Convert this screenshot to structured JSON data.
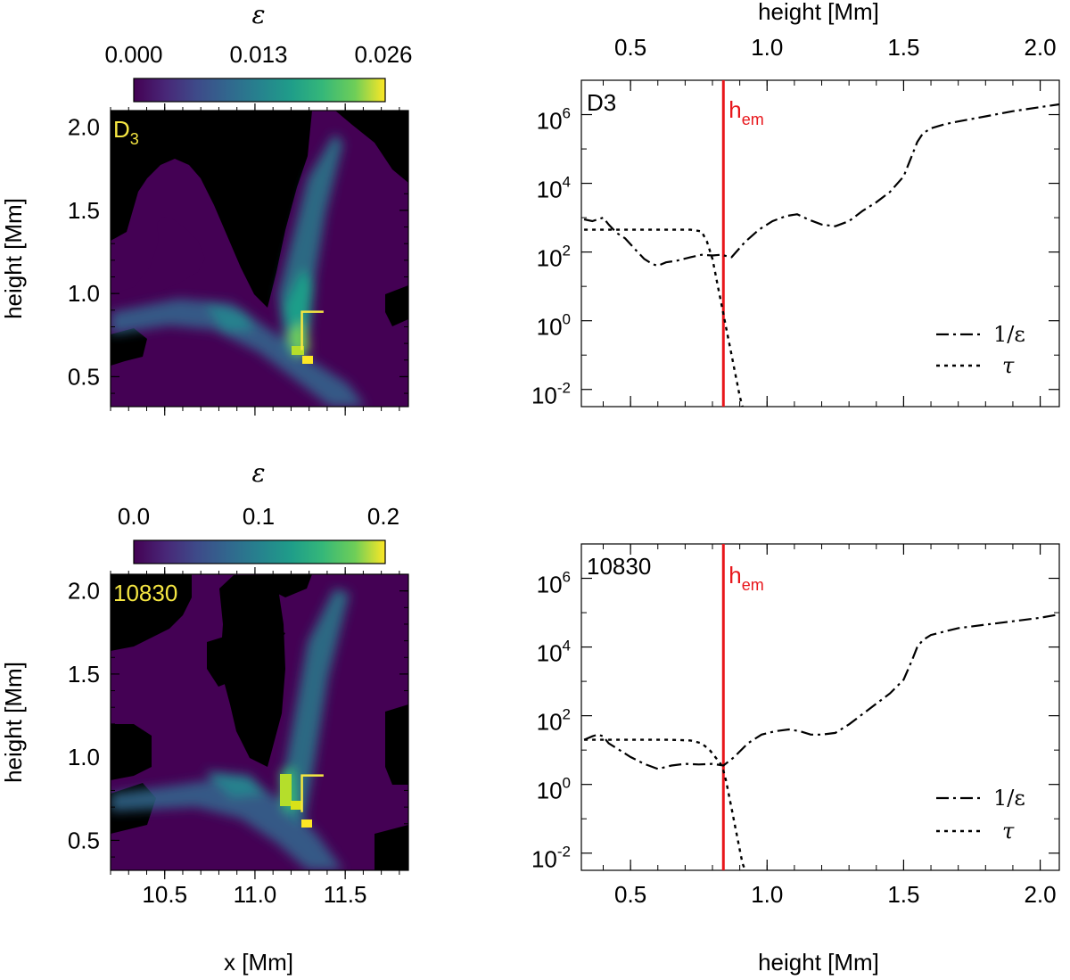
{
  "chart_data": [
    {
      "type": "heatmap",
      "panel_label": "D",
      "panel_label_sub": "3",
      "label_color": "#f5e642",
      "xlabel": "x [Mm]",
      "ylabel": "height [Mm]",
      "xlim": [
        10.2,
        11.85
      ],
      "ylim": [
        0.32,
        2.1
      ],
      "xticks": [
        "10.5",
        "11.0",
        "11.5"
      ],
      "yticks": [
        "0.5",
        "1.0",
        "1.5",
        "2.0"
      ],
      "colorbar": {
        "title": "ε",
        "ticks": [
          "0.000",
          "0.013",
          "0.026"
        ],
        "range": [
          0,
          0.028
        ]
      },
      "colormap": "viridis",
      "bracket": {
        "x": [
          11.26,
          11.38
        ],
        "y": [
          0.66,
          0.89
        ]
      }
    },
    {
      "type": "line",
      "panel_label": "D3",
      "xlabel": "",
      "top_xlabel": "height [Mm]",
      "xlim": [
        0.32,
        2.07
      ],
      "ylog_range": [
        -2.5,
        7.0
      ],
      "xticks": [
        "0.5",
        "1.0",
        "1.5",
        "2.0"
      ],
      "yticks": [
        {
          "base": "10",
          "exp": "6"
        },
        {
          "base": "10",
          "exp": "4"
        },
        {
          "base": "10",
          "exp": "2"
        },
        {
          "base": "10",
          "exp": "0"
        },
        {
          "base": "10",
          "exp": "-2"
        }
      ],
      "vline": {
        "x": 0.84,
        "label": "h",
        "label_sub": "em",
        "color": "#e8161b"
      },
      "series": [
        {
          "name": "1/ε",
          "style": "dashdot",
          "x": [
            0.33,
            0.36,
            0.38,
            0.4,
            0.42,
            0.45,
            0.48,
            0.52,
            0.55,
            0.58,
            0.6,
            0.63,
            0.67,
            0.72,
            0.76,
            0.8,
            0.83,
            0.87,
            0.92,
            0.97,
            1.02,
            1.07,
            1.11,
            1.15,
            1.2,
            1.25,
            1.3,
            1.35,
            1.4,
            1.45,
            1.5,
            1.53,
            1.55,
            1.57,
            1.6,
            1.65,
            1.7,
            1.8,
            1.9,
            2.0,
            2.07
          ],
          "log10_values": [
            2.95,
            2.9,
            2.95,
            3.0,
            2.8,
            2.55,
            2.4,
            2.05,
            1.8,
            1.65,
            1.6,
            1.7,
            1.75,
            1.85,
            1.92,
            1.9,
            1.92,
            1.85,
            2.3,
            2.65,
            2.9,
            3.05,
            3.1,
            2.95,
            2.8,
            2.75,
            2.9,
            3.2,
            3.45,
            3.75,
            4.2,
            4.8,
            5.2,
            5.45,
            5.6,
            5.72,
            5.8,
            5.95,
            6.1,
            6.22,
            6.3
          ]
        },
        {
          "name": "τ",
          "style": "dotted",
          "x": [
            0.33,
            0.45,
            0.55,
            0.65,
            0.72,
            0.76,
            0.78,
            0.8,
            0.81,
            0.82,
            0.83,
            0.84,
            0.85,
            0.86,
            0.87,
            0.88,
            0.89,
            0.9,
            0.91
          ],
          "log10_values": [
            2.65,
            2.65,
            2.65,
            2.65,
            2.65,
            2.6,
            2.3,
            1.8,
            1.4,
            1.0,
            0.6,
            0.2,
            -0.2,
            -0.6,
            -1.0,
            -1.4,
            -1.8,
            -2.2,
            -2.6
          ]
        }
      ]
    },
    {
      "type": "heatmap",
      "panel_label": "10830",
      "label_color": "#f5e642",
      "xlabel": "x [Mm]",
      "ylabel": "height [Mm]",
      "xlim": [
        10.2,
        11.85
      ],
      "ylim": [
        0.32,
        2.1
      ],
      "xticks": [
        "10.5",
        "11.0",
        "11.5"
      ],
      "yticks": [
        "0.5",
        "1.0",
        "1.5",
        "2.0"
      ],
      "colorbar": {
        "title": "ε",
        "ticks": [
          "0.0",
          "0.1",
          "0.2"
        ],
        "range": [
          0,
          0.215
        ]
      },
      "colormap": "viridis",
      "bracket": {
        "x": [
          11.26,
          11.38
        ],
        "y": [
          0.67,
          0.89
        ]
      }
    },
    {
      "type": "line",
      "panel_label": "10830",
      "xlabel": "height [Mm]",
      "xlim": [
        0.32,
        2.07
      ],
      "ylog_range": [
        -2.5,
        7.0
      ],
      "xticks": [
        "0.5",
        "1.0",
        "1.5",
        "2.0"
      ],
      "yticks": [
        {
          "base": "10",
          "exp": "6"
        },
        {
          "base": "10",
          "exp": "4"
        },
        {
          "base": "10",
          "exp": "2"
        },
        {
          "base": "10",
          "exp": "0"
        },
        {
          "base": "10",
          "exp": "-2"
        }
      ],
      "vline": {
        "x": 0.84,
        "label": "h",
        "label_sub": "em",
        "color": "#e8161b"
      },
      "series": [
        {
          "name": "1/ε",
          "style": "dashdot",
          "x": [
            0.33,
            0.36,
            0.38,
            0.4,
            0.42,
            0.45,
            0.5,
            0.55,
            0.6,
            0.65,
            0.7,
            0.75,
            0.8,
            0.84,
            0.88,
            0.93,
            0.98,
            1.03,
            1.08,
            1.12,
            1.16,
            1.2,
            1.25,
            1.3,
            1.35,
            1.4,
            1.45,
            1.5,
            1.53,
            1.55,
            1.57,
            1.6,
            1.65,
            1.7,
            1.8,
            1.9,
            2.0,
            2.07
          ],
          "log10_values": [
            1.3,
            1.4,
            1.45,
            1.4,
            1.2,
            1.05,
            0.8,
            0.6,
            0.45,
            0.55,
            0.6,
            0.58,
            0.6,
            0.55,
            0.8,
            1.2,
            1.45,
            1.55,
            1.6,
            1.55,
            1.45,
            1.45,
            1.5,
            1.75,
            2.05,
            2.35,
            2.65,
            3.05,
            3.6,
            4.0,
            4.2,
            4.35,
            4.45,
            4.55,
            4.65,
            4.75,
            4.85,
            4.95
          ]
        },
        {
          "name": "τ",
          "style": "dotted",
          "x": [
            0.33,
            0.45,
            0.55,
            0.65,
            0.72,
            0.76,
            0.79,
            0.81,
            0.83,
            0.84,
            0.85,
            0.86,
            0.87,
            0.88,
            0.89,
            0.9,
            0.91,
            0.92
          ],
          "log10_values": [
            1.3,
            1.3,
            1.3,
            1.3,
            1.28,
            1.2,
            1.0,
            0.8,
            0.6,
            0.4,
            0.1,
            -0.3,
            -0.7,
            -1.1,
            -1.5,
            -1.9,
            -2.3,
            -2.7
          ]
        }
      ]
    }
  ]
}
